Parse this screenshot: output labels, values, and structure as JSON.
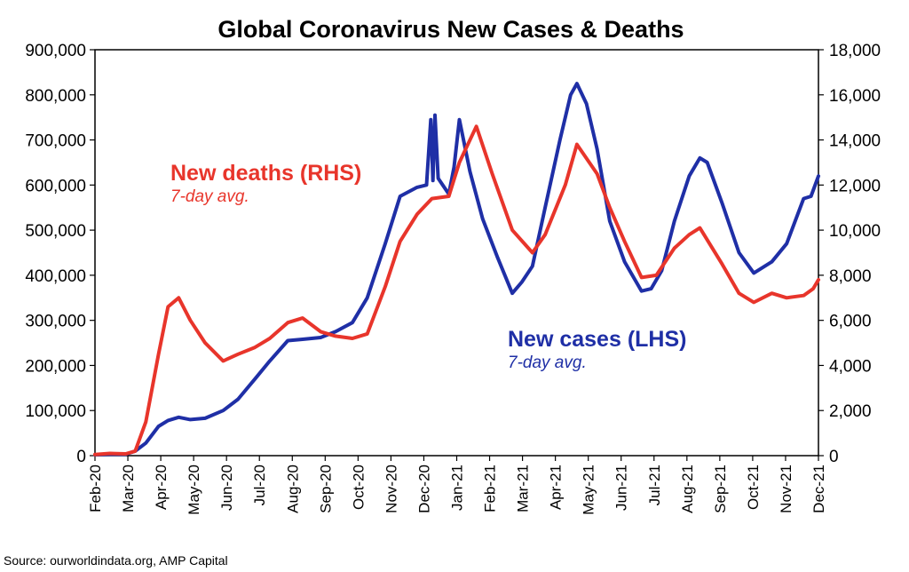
{
  "chart_data": {
    "type": "line",
    "title": "Global Coronavirus New Cases & Deaths",
    "source": "Source: ourworldindata.org, AMP Capital",
    "x_tick_labels": [
      "Feb-20",
      "Mar-20",
      "Apr-20",
      "May-20",
      "Jun-20",
      "Jul-20",
      "Aug-20",
      "Sep-20",
      "Oct-20",
      "Nov-20",
      "Dec-20",
      "Jan-21",
      "Feb-21",
      "Mar-21",
      "Apr-21",
      "May-21",
      "Jun-21",
      "Jul-21",
      "Aug-21",
      "Sep-21",
      "Oct-21",
      "Nov-21",
      "Dec-21"
    ],
    "x_range": [
      "2020-02-01",
      "2021-12-15"
    ],
    "y_left": {
      "range": [
        0,
        900000
      ],
      "tick_labels": [
        "0",
        "100,000",
        "200,000",
        "300,000",
        "400,000",
        "500,000",
        "600,000",
        "700,000",
        "800,000",
        "900,000"
      ]
    },
    "y_right": {
      "range": [
        0,
        18000
      ],
      "tick_labels": [
        "0",
        "2,000",
        "4,000",
        "6,000",
        "8,000",
        "10,000",
        "12,000",
        "14,000",
        "16,000",
        "18,000"
      ]
    },
    "grid": false,
    "series": [
      {
        "name": "New cases (LHS)",
        "subtitle": "7-day avg.",
        "axis": "left",
        "color": "#1f2fa6",
        "points": [
          [
            "2020-02-01",
            2000
          ],
          [
            "2020-02-15",
            3000
          ],
          [
            "2020-03-01",
            3000
          ],
          [
            "2020-03-10",
            10000
          ],
          [
            "2020-03-20",
            28000
          ],
          [
            "2020-04-01",
            65000
          ],
          [
            "2020-04-10",
            78000
          ],
          [
            "2020-04-20",
            85000
          ],
          [
            "2020-05-01",
            80000
          ],
          [
            "2020-05-15",
            83000
          ],
          [
            "2020-06-01",
            100000
          ],
          [
            "2020-06-15",
            125000
          ],
          [
            "2020-07-01",
            170000
          ],
          [
            "2020-07-15",
            210000
          ],
          [
            "2020-08-01",
            255000
          ],
          [
            "2020-08-15",
            258000
          ],
          [
            "2020-09-01",
            262000
          ],
          [
            "2020-09-15",
            275000
          ],
          [
            "2020-10-01",
            295000
          ],
          [
            "2020-10-15",
            350000
          ],
          [
            "2020-11-01",
            470000
          ],
          [
            "2020-11-15",
            575000
          ],
          [
            "2020-12-01",
            595000
          ],
          [
            "2020-12-10",
            600000
          ],
          [
            "2020-12-14",
            745000
          ],
          [
            "2020-12-16",
            610000
          ],
          [
            "2020-12-18",
            755000
          ],
          [
            "2020-12-21",
            615000
          ],
          [
            "2020-12-31",
            580000
          ],
          [
            "2021-01-05",
            640000
          ],
          [
            "2021-01-10",
            745000
          ],
          [
            "2021-01-20",
            630000
          ],
          [
            "2021-02-01",
            525000
          ],
          [
            "2021-02-15",
            440000
          ],
          [
            "2021-03-01",
            360000
          ],
          [
            "2021-03-10",
            385000
          ],
          [
            "2021-03-20",
            420000
          ],
          [
            "2021-04-01",
            550000
          ],
          [
            "2021-04-15",
            700000
          ],
          [
            "2021-04-25",
            800000
          ],
          [
            "2021-05-01",
            825000
          ],
          [
            "2021-05-10",
            780000
          ],
          [
            "2021-05-20",
            680000
          ],
          [
            "2021-06-01",
            520000
          ],
          [
            "2021-06-15",
            430000
          ],
          [
            "2021-07-01",
            365000
          ],
          [
            "2021-07-10",
            370000
          ],
          [
            "2021-07-20",
            410000
          ],
          [
            "2021-08-01",
            520000
          ],
          [
            "2021-08-15",
            620000
          ],
          [
            "2021-08-25",
            660000
          ],
          [
            "2021-09-01",
            650000
          ],
          [
            "2021-09-15",
            560000
          ],
          [
            "2021-10-01",
            450000
          ],
          [
            "2021-10-15",
            405000
          ],
          [
            "2021-11-01",
            430000
          ],
          [
            "2021-11-15",
            470000
          ],
          [
            "2021-12-01",
            570000
          ],
          [
            "2021-12-08",
            575000
          ],
          [
            "2021-12-15",
            620000
          ]
        ]
      },
      {
        "name": "New deaths (RHS)",
        "subtitle": "7-day avg.",
        "axis": "right",
        "color": "#e8352b",
        "points": [
          [
            "2020-02-01",
            50
          ],
          [
            "2020-02-15",
            100
          ],
          [
            "2020-03-01",
            80
          ],
          [
            "2020-03-10",
            200
          ],
          [
            "2020-03-20",
            1500
          ],
          [
            "2020-04-01",
            4500
          ],
          [
            "2020-04-10",
            6600
          ],
          [
            "2020-04-20",
            7000
          ],
          [
            "2020-05-01",
            6000
          ],
          [
            "2020-05-15",
            5000
          ],
          [
            "2020-06-01",
            4200
          ],
          [
            "2020-06-15",
            4500
          ],
          [
            "2020-07-01",
            4800
          ],
          [
            "2020-07-15",
            5200
          ],
          [
            "2020-08-01",
            5900
          ],
          [
            "2020-08-15",
            6100
          ],
          [
            "2020-09-01",
            5500
          ],
          [
            "2020-09-15",
            5300
          ],
          [
            "2020-10-01",
            5200
          ],
          [
            "2020-10-15",
            5400
          ],
          [
            "2020-11-01",
            7500
          ],
          [
            "2020-11-15",
            9500
          ],
          [
            "2020-12-01",
            10700
          ],
          [
            "2020-12-15",
            11400
          ],
          [
            "2020-12-31",
            11500
          ],
          [
            "2021-01-10",
            13000
          ],
          [
            "2021-01-26",
            14600
          ],
          [
            "2021-02-10",
            12500
          ],
          [
            "2021-03-01",
            10000
          ],
          [
            "2021-03-20",
            9000
          ],
          [
            "2021-04-01",
            9800
          ],
          [
            "2021-04-20",
            12000
          ],
          [
            "2021-05-01",
            13800
          ],
          [
            "2021-05-20",
            12500
          ],
          [
            "2021-06-01",
            11000
          ],
          [
            "2021-06-15",
            9500
          ],
          [
            "2021-07-01",
            7900
          ],
          [
            "2021-07-15",
            8000
          ],
          [
            "2021-08-01",
            9200
          ],
          [
            "2021-08-15",
            9800
          ],
          [
            "2021-08-25",
            10100
          ],
          [
            "2021-09-15",
            8500
          ],
          [
            "2021-10-01",
            7200
          ],
          [
            "2021-10-15",
            6800
          ],
          [
            "2021-11-01",
            7200
          ],
          [
            "2021-11-15",
            7000
          ],
          [
            "2021-12-01",
            7100
          ],
          [
            "2021-12-10",
            7400
          ],
          [
            "2021-12-15",
            7800
          ]
        ]
      }
    ]
  }
}
